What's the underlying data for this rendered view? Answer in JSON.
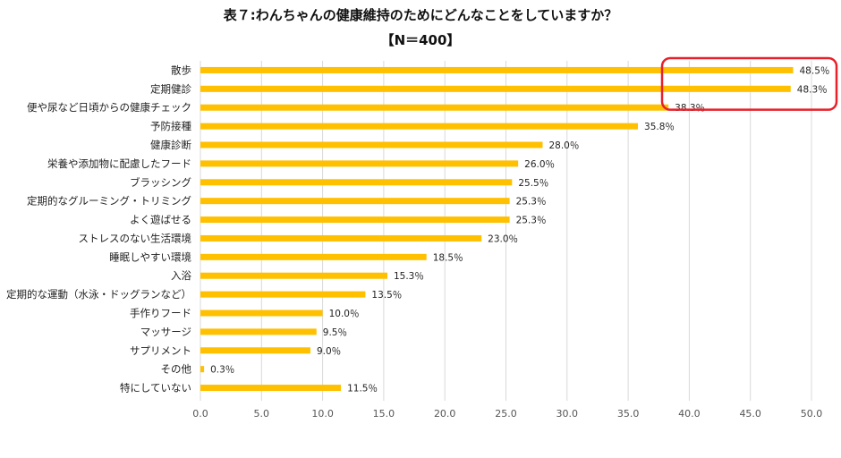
{
  "chart_data": {
    "type": "bar",
    "orientation": "horizontal",
    "title": "表７:わんちゃんの健康維持のためにどんなことをしていますか？",
    "subtitle": "【N＝400】",
    "categories": [
      "散歩",
      "定期健診",
      "便や尿など日頃からの健康チェック",
      "予防接種",
      "健康診断",
      "栄養や添加物に配慮したフード",
      "ブラッシング",
      "定期的なグルーミング・トリミング",
      "よく遊ばせる",
      "ストレスのない生活環境",
      "睡眠しやすい環境",
      "入浴",
      "定期的な運動（水泳・ドッグランなど）",
      "手作りフード",
      "マッサージ",
      "サプリメント",
      "その他",
      "特にしていない"
    ],
    "values": [
      48.5,
      48.3,
      38.3,
      35.8,
      28.0,
      26.0,
      25.5,
      25.3,
      25.3,
      23.0,
      18.5,
      15.3,
      13.5,
      10.0,
      9.5,
      9.0,
      0.3,
      11.5
    ],
    "data_labels": [
      "48.5％",
      "48.3％",
      "38.3％",
      "35.8％",
      "28.0％",
      "26.0％",
      "25.5％",
      "25.3％",
      "25.3％",
      "23.0％",
      "18.5％",
      "15.3％",
      "13.5％",
      "10.0％",
      "9.5％",
      "9.0％",
      "0.3％",
      "11.5％"
    ],
    "xlim": [
      0,
      50
    ],
    "xticks": [
      "0.0",
      "5.0",
      "10.0",
      "15.0",
      "20.0",
      "25.0",
      "30.0",
      "35.0",
      "40.0",
      "45.0",
      "50.0"
    ],
    "grid": "vertical",
    "highlight": {
      "categories": [
        "散歩",
        "定期健診",
        "便や尿など日頃からの健康チェック"
      ],
      "color": "#e8202a"
    },
    "colors": {
      "bar": "#ffc000",
      "grid": "#d9d9d9",
      "text": "#222222"
    }
  }
}
